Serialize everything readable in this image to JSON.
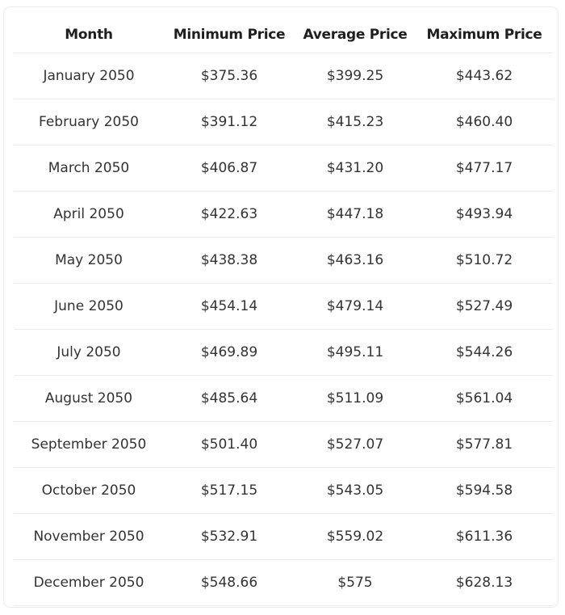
{
  "table": {
    "headers": [
      "Month",
      "Minimum Price",
      "Average Price",
      "Maximum Price"
    ],
    "rows": [
      [
        "January 2050",
        "$375.36",
        "$399.25",
        "$443.62"
      ],
      [
        "February 2050",
        "$391.12",
        "$415.23",
        "$460.40"
      ],
      [
        "March 2050",
        "$406.87",
        "$431.20",
        "$477.17"
      ],
      [
        "April 2050",
        "$422.63",
        "$447.18",
        "$493.94"
      ],
      [
        "May 2050",
        "$438.38",
        "$463.16",
        "$510.72"
      ],
      [
        "June 2050",
        "$454.14",
        "$479.14",
        "$527.49"
      ],
      [
        "July 2050",
        "$469.89",
        "$495.11",
        "$544.26"
      ],
      [
        "August 2050",
        "$485.64",
        "$511.09",
        "$561.04"
      ],
      [
        "September 2050",
        "$501.40",
        "$527.07",
        "$577.81"
      ],
      [
        "October 2050",
        "$517.15",
        "$543.05",
        "$594.58"
      ],
      [
        "November 2050",
        "$532.91",
        "$559.02",
        "$611.36"
      ],
      [
        "December 2050",
        "$548.66",
        "$575",
        "$628.13"
      ]
    ]
  },
  "colors": {
    "text": "#333333",
    "header_text": "#1f1f1f",
    "border": "#ededed",
    "background": "#ffffff"
  }
}
